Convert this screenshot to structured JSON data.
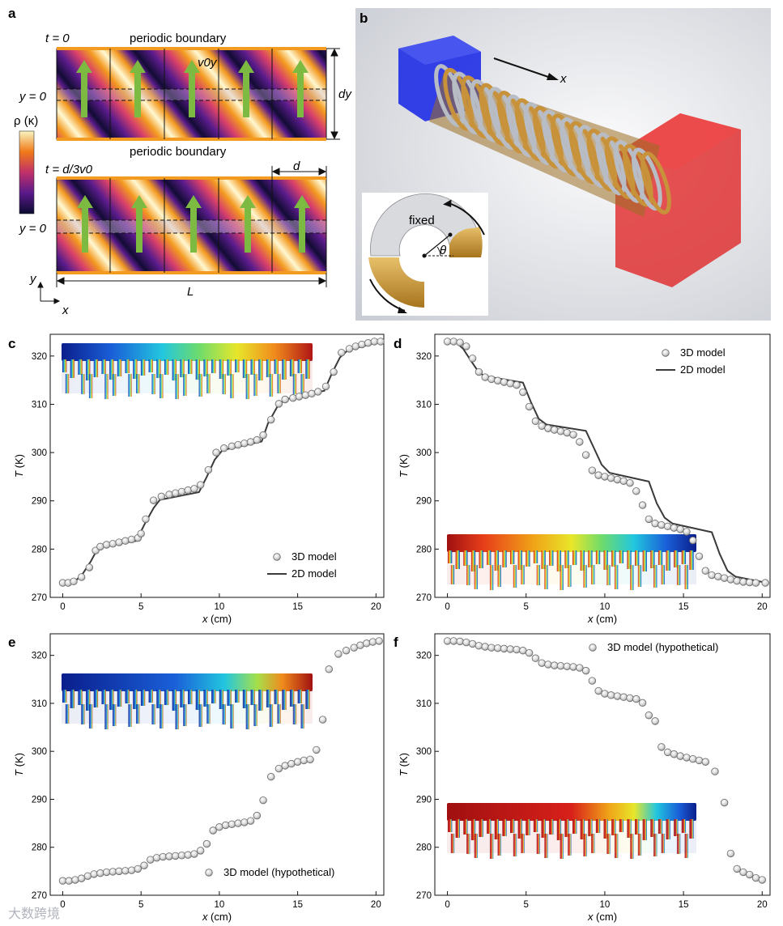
{
  "panel_labels": [
    "a",
    "b",
    "c",
    "d",
    "e",
    "f"
  ],
  "panel_a": {
    "t0_label": "t = 0",
    "t1_label": "t = d/3v0",
    "boundary_top": "periodic boundary",
    "boundary_mid": "periodic boundary",
    "y0_label_top": "y = 0",
    "y0_label_bottom": "y = 0",
    "v_label": "v0y",
    "dy_label": "dy",
    "d_label": "d",
    "L_label": "L",
    "axis_y": "y",
    "axis_x": "x",
    "colorbar_label": "ρ (κ)"
  },
  "panel_b": {
    "x_label": "x",
    "fixed_label": "fixed",
    "theta_label": "θ",
    "colors": {
      "cold": "#1f2ee6",
      "hot": "#e01b1b",
      "gold": "#c08a2e"
    }
  },
  "watermark": "大数跨境",
  "chart_data": [
    {
      "panel": "c",
      "type": "scatter",
      "xlabel": "x (cm)",
      "ylabel": "T (K)",
      "xlim": [
        -0.8,
        20.5
      ],
      "ylim": [
        270,
        324.5
      ],
      "xticks": [
        0,
        5,
        10,
        15,
        20
      ],
      "yticks": [
        270,
        280,
        290,
        300,
        310,
        320
      ],
      "legend": [
        "3D model",
        "2D model"
      ],
      "legend_position": "bottom-right",
      "series": [
        {
          "name": "3D model",
          "x": [
            0,
            0.35,
            0.7,
            1.2,
            1.7,
            2.1,
            2.4,
            2.8,
            3.2,
            3.6,
            4.0,
            4.4,
            4.8,
            5.0,
            5.3,
            5.8,
            6.3,
            6.8,
            7.2,
            7.6,
            8.0,
            8.4,
            8.8,
            9.3,
            9.8,
            10.3,
            10.8,
            11.2,
            11.6,
            12.0,
            12.4,
            12.8,
            13.3,
            13.8,
            14.2,
            14.7,
            15.1,
            15.5,
            15.9,
            16.3,
            16.8,
            17.3,
            17.8,
            18.3,
            18.7,
            19.1,
            19.5,
            19.9,
            20.3
          ],
          "y": [
            273,
            273,
            273.3,
            274.2,
            276.2,
            279.7,
            280.5,
            280.9,
            281.1,
            281.4,
            281.7,
            282,
            282.3,
            283.2,
            286.2,
            290.1,
            290.9,
            291.3,
            291.6,
            291.9,
            292.2,
            292.5,
            293.3,
            296.4,
            300,
            300.9,
            301.3,
            301.6,
            301.9,
            302.2,
            302.6,
            303.6,
            306.8,
            310.1,
            311,
            311.3,
            311.6,
            311.9,
            312.2,
            312.6,
            313.7,
            316.7,
            320.7,
            321.5,
            322,
            322.4,
            322.7,
            323,
            323
          ]
        },
        {
          "name": "2D model",
          "x": [
            0,
            0.7,
            1.3,
            1.8,
            2.3,
            4.7,
            5.2,
            5.8,
            6.2,
            8.7,
            9.2,
            9.7,
            10.2,
            12.7,
            13.1,
            13.7,
            14.2,
            16.7,
            17.2,
            17.7,
            18.2,
            20.3
          ],
          "y": [
            273,
            273,
            275,
            277.5,
            280.5,
            281.7,
            285,
            288.5,
            290.2,
            291.8,
            295,
            298.5,
            300.5,
            302.3,
            306,
            309.5,
            311,
            312.8,
            316.5,
            319.7,
            321.2,
            323
          ]
        }
      ]
    },
    {
      "panel": "d",
      "type": "scatter",
      "xlabel": "x (cm)",
      "ylabel": "T (K)",
      "xlim": [
        -0.8,
        20.5
      ],
      "ylim": [
        270,
        324.5
      ],
      "xticks": [
        0,
        5,
        10,
        15,
        20
      ],
      "yticks": [
        270,
        280,
        290,
        300,
        310,
        320
      ],
      "legend": [
        "3D model",
        "2D model"
      ],
      "legend_position": "top-right",
      "series": [
        {
          "name": "3D model",
          "x": [
            0,
            0.4,
            0.8,
            1.2,
            1.6,
            2.0,
            2.4,
            2.8,
            3.2,
            3.6,
            4.0,
            4.4,
            4.8,
            5.2,
            5.6,
            6.0,
            6.4,
            6.8,
            7.2,
            7.6,
            8.0,
            8.4,
            8.8,
            9.2,
            9.6,
            10.0,
            10.4,
            10.8,
            11.2,
            11.6,
            12.0,
            12.4,
            12.8,
            13.2,
            13.6,
            14.0,
            14.4,
            14.8,
            15.2,
            15.6,
            16.0,
            16.4,
            16.8,
            17.2,
            17.6,
            18.0,
            18.4,
            18.8,
            19.2,
            19.6,
            20.2
          ],
          "y": [
            323,
            323,
            322.8,
            322,
            319.5,
            316.7,
            315.6,
            315.2,
            314.9,
            314.6,
            314.3,
            314,
            312.5,
            309.5,
            306.5,
            305.5,
            305,
            304.7,
            304.4,
            304.1,
            303.7,
            302.2,
            299.5,
            296.3,
            295.3,
            295,
            294.7,
            294.4,
            294.1,
            293.7,
            292,
            289.1,
            286.2,
            285.3,
            285,
            284.7,
            284.4,
            284.1,
            283.6,
            281.8,
            278.5,
            275.5,
            274.6,
            274.3,
            274,
            273.7,
            273.4,
            273.2,
            273.1,
            273,
            273
          ]
        },
        {
          "name": "2D model",
          "x": [
            0,
            0.5,
            1.0,
            1.5,
            2.0,
            2.4,
            4.8,
            5.3,
            5.8,
            6.3,
            8.8,
            9.3,
            9.8,
            10.3,
            12.8,
            13.3,
            13.8,
            14.3,
            16.8,
            17.3,
            17.8,
            18.3,
            20.3
          ],
          "y": [
            323,
            323,
            321.5,
            319,
            316.6,
            315.8,
            314.5,
            310.5,
            307,
            305.8,
            304.5,
            301,
            297.5,
            295.8,
            294,
            289.5,
            286.5,
            285.3,
            283.5,
            279,
            275.5,
            274.3,
            273
          ]
        }
      ]
    },
    {
      "panel": "e",
      "type": "scatter",
      "xlabel": "x (cm)",
      "ylabel": "T (K)",
      "xlim": [
        -0.8,
        20.5
      ],
      "ylim": [
        270,
        324.5
      ],
      "xticks": [
        0,
        5,
        10,
        15,
        20
      ],
      "yticks": [
        270,
        280,
        290,
        300,
        310,
        320
      ],
      "legend": [
        "3D model (hypothetical)"
      ],
      "legend_position": "bottom-right",
      "series": [
        {
          "name": "3D model (hypothetical)",
          "x": [
            0,
            0.4,
            0.8,
            1.2,
            1.6,
            2.0,
            2.4,
            2.8,
            3.2,
            3.6,
            4.0,
            4.4,
            4.8,
            5.2,
            5.6,
            6.0,
            6.4,
            6.8,
            7.2,
            7.6,
            8.0,
            8.4,
            8.8,
            9.2,
            9.6,
            10.0,
            10.4,
            10.8,
            11.2,
            11.6,
            12.0,
            12.4,
            12.8,
            13.3,
            13.8,
            14.2,
            14.6,
            15.0,
            15.4,
            15.8,
            16.2,
            16.6,
            17.0,
            17.6,
            18.1,
            18.6,
            19.0,
            19.4,
            19.8,
            20.2
          ],
          "y": [
            273,
            273,
            273.2,
            273.5,
            274,
            274.4,
            274.6,
            274.8,
            274.9,
            275,
            275.1,
            275.2,
            275.5,
            276.2,
            277.4,
            277.8,
            278,
            278.1,
            278.2,
            278.3,
            278.4,
            278.6,
            279.3,
            280.7,
            283.5,
            284.2,
            284.6,
            284.8,
            285,
            285.2,
            285.5,
            286.6,
            289.8,
            294.7,
            296.4,
            297,
            297.4,
            297.8,
            298.1,
            298.3,
            300.3,
            306.6,
            317.1,
            320.3,
            321,
            321.6,
            322.1,
            322.5,
            322.8,
            323
          ]
        }
      ]
    },
    {
      "panel": "f",
      "type": "scatter",
      "xlabel": "x (cm)",
      "ylabel": "T (K)",
      "xlim": [
        -0.8,
        20.5
      ],
      "ylim": [
        270,
        324.5
      ],
      "xticks": [
        0,
        5,
        10,
        15,
        20
      ],
      "yticks": [
        270,
        280,
        290,
        300,
        310,
        320
      ],
      "legend": [
        "3D model (hypothetical)"
      ],
      "legend_position": "top-right",
      "series": [
        {
          "name": "3D model (hypothetical)",
          "x": [
            0,
            0.4,
            0.8,
            1.2,
            1.6,
            2.0,
            2.4,
            2.8,
            3.2,
            3.6,
            4.0,
            4.4,
            4.8,
            5.2,
            5.6,
            6.0,
            6.4,
            6.8,
            7.2,
            7.6,
            8.0,
            8.4,
            8.8,
            9.2,
            9.6,
            10.0,
            10.4,
            10.8,
            11.2,
            11.6,
            12.0,
            12.4,
            12.8,
            13.2,
            13.6,
            14.0,
            14.4,
            14.8,
            15.2,
            15.6,
            16.0,
            16.4,
            17.0,
            17.6,
            18.0,
            18.4,
            18.8,
            19.2,
            19.6,
            20.0
          ],
          "y": [
            323,
            323,
            322.9,
            322.7,
            322.4,
            322,
            321.8,
            321.6,
            321.5,
            321.4,
            321.3,
            321.2,
            321,
            320.5,
            319.4,
            318.4,
            318.1,
            317.9,
            317.8,
            317.7,
            317.6,
            317.4,
            316.8,
            314.7,
            312.6,
            312,
            311.7,
            311.5,
            311.3,
            311.1,
            310.9,
            310.1,
            307.5,
            306.3,
            300.9,
            299.8,
            299.4,
            299,
            298.7,
            298.4,
            298.1,
            297.8,
            295.8,
            289.3,
            278.7,
            275.5,
            274.8,
            274.3,
            273.6,
            273.2
          ]
        }
      ]
    }
  ]
}
